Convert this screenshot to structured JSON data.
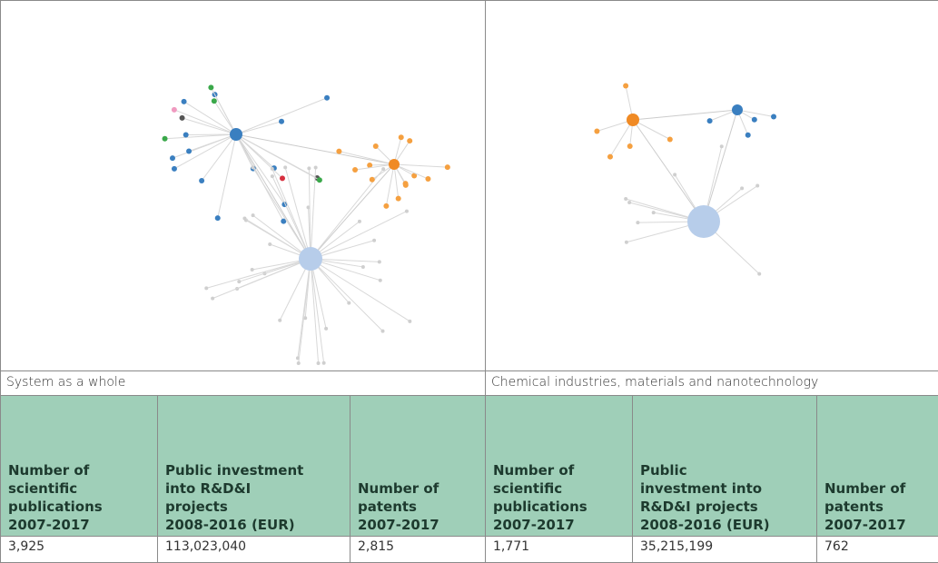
{
  "panels": [
    {
      "caption": "System as a whole",
      "headers": [
        "Number of\nscientific\npublications\n2007-2017",
        "Public investment\ninto R&D&I\nprojects\n2008-2016 (EUR)",
        "Number of\npatents\n2007-2017"
      ],
      "values": [
        "3,925",
        "113,023,040",
        "2,815"
      ]
    },
    {
      "caption": "Chemical industries, materials and nanotechnology",
      "headers": [
        "Number of\nscientific\npublications\n2007-2017",
        "Public\ninvestment into\nR&D&I projects\n2008-2016 (EUR)",
        "Number of\npatents\n2007-2017"
      ],
      "values": [
        "1,771",
        "35,215,199",
        "762"
      ]
    }
  ]
}
